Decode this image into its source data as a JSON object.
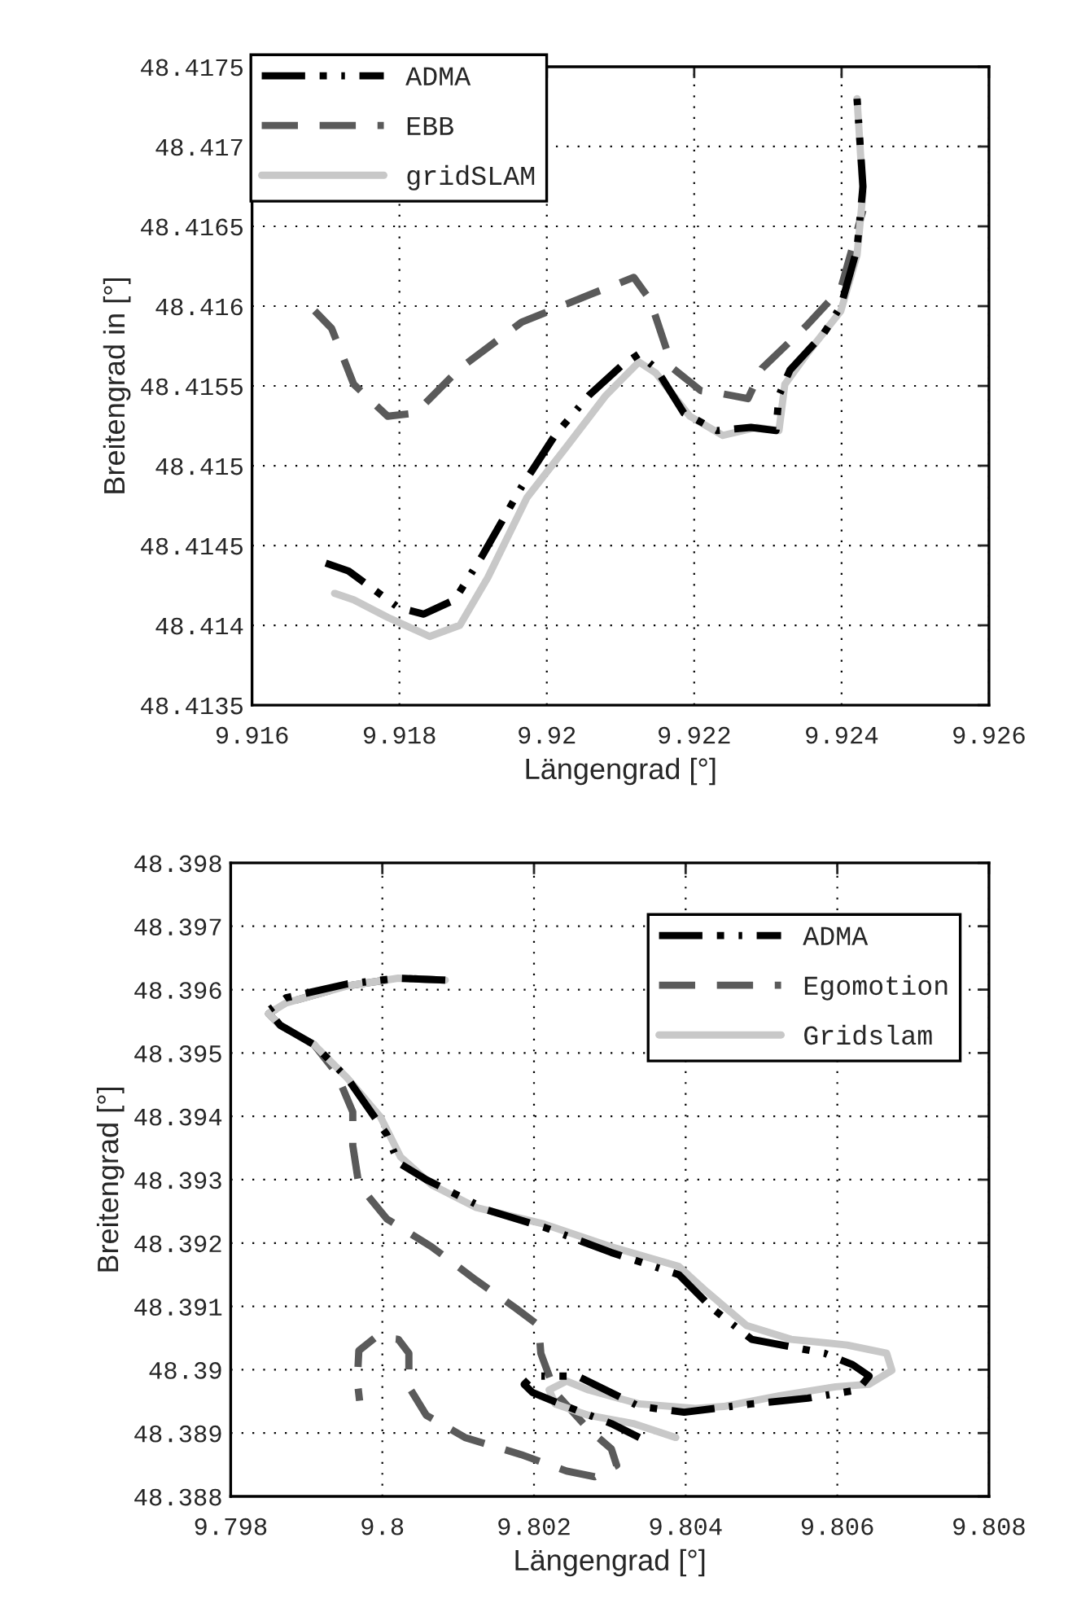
{
  "chart_data": [
    {
      "type": "line",
      "xlabel": "Längengrad [°]",
      "ylabel": "Breitengrad in [°]",
      "xlim": [
        9.916,
        9.926
      ],
      "ylim": [
        48.4135,
        48.4175
      ],
      "xticks": [
        9.916,
        9.918,
        9.92,
        9.922,
        9.924,
        9.926
      ],
      "yticks": [
        48.4135,
        48.414,
        48.4145,
        48.415,
        48.4155,
        48.416,
        48.4165,
        48.417,
        48.4175
      ],
      "grid": true,
      "legend": "top left",
      "marker": "none",
      "series": [
        {
          "name": "ADMA",
          "color": "#000000",
          "line_style": "dashdot",
          "x": [
            9.917,
            9.91731,
            9.91799,
            9.91833,
            9.91875,
            9.91913,
            9.91966,
            9.92011,
            9.92057,
            9.92102,
            9.92125,
            9.92148,
            9.92186,
            9.92231,
            9.92277,
            9.92311,
            9.92315,
            9.9233,
            9.92376,
            9.92399,
            9.92421,
            9.92429,
            9.92421
          ],
          "values": [
            48.41439,
            48.41434,
            48.41411,
            48.41407,
            48.41416,
            48.41444,
            48.41487,
            48.41519,
            48.41544,
            48.41563,
            48.4157,
            48.41561,
            48.41533,
            48.41522,
            48.41524,
            48.41522,
            48.41544,
            48.4156,
            48.41583,
            48.416,
            48.41636,
            48.41675,
            48.4173
          ]
        },
        {
          "name": "EBB",
          "color": "#5a5a5a",
          "line_style": "dashed",
          "x": [
            9.91685,
            9.91708,
            9.91738,
            9.91784,
            9.91822,
            9.91882,
            9.91966,
            9.92057,
            9.92118,
            9.9214,
            9.92171,
            9.92209,
            9.92239,
            9.92273,
            9.92292,
            9.92353,
            9.92399,
            9.92429
          ],
          "values": [
            48.41597,
            48.41586,
            48.41551,
            48.41531,
            48.41533,
            48.41561,
            48.4159,
            48.41607,
            48.41618,
            48.41604,
            48.41561,
            48.41547,
            48.41545,
            48.41542,
            48.41561,
            48.41588,
            48.41611,
            48.4166
          ]
        },
        {
          "name": "gridSLAM",
          "color": "#c8c8c8",
          "line_style": "solid",
          "x": [
            9.91712,
            9.91738,
            9.91784,
            9.91841,
            9.91882,
            9.9192,
            9.91973,
            9.92027,
            9.9208,
            9.92125,
            9.92148,
            9.92194,
            9.92239,
            9.92285,
            9.92315,
            9.92323,
            9.92353,
            9.92399,
            9.92421,
            9.92429,
            9.92421
          ],
          "values": [
            48.4142,
            48.41416,
            48.41405,
            48.41393,
            48.414,
            48.4143,
            48.4148,
            48.41512,
            48.41544,
            48.41565,
            48.41558,
            48.41531,
            48.41519,
            48.41524,
            48.41522,
            48.41551,
            48.4157,
            48.41597,
            48.41632,
            48.41671,
            48.4173
          ]
        }
      ]
    },
    {
      "type": "line",
      "xlabel": "Längengrad [°]",
      "ylabel": "Breitengrad [°]",
      "xlim": [
        9.798,
        9.808
      ],
      "ylim": [
        48.388,
        48.398
      ],
      "xticks": [
        9.798,
        9.8,
        9.802,
        9.804,
        9.806,
        9.808
      ],
      "yticks": [
        48.388,
        48.389,
        48.39,
        48.391,
        48.392,
        48.393,
        48.394,
        48.395,
        48.396,
        48.397,
        48.398
      ],
      "grid": true,
      "legend": "top right",
      "marker": "none",
      "series": [
        {
          "name": "ADMA",
          "color": "#000000",
          "line_style": "dashdot",
          "x": [
            9.80083,
            9.80021,
            9.79954,
            9.79873,
            9.7985,
            9.79865,
            9.7991,
            9.79954,
            9.80006,
            9.80021,
            9.80058,
            9.80139,
            9.80213,
            9.80302,
            9.80391,
            9.80435,
            9.80487,
            9.80583,
            9.8062,
            9.80642,
            9.80627,
            9.80561,
            9.80487,
            9.80398,
            9.80339,
            9.80257,
            9.80198,
            9.80187,
            9.80198,
            9.80243,
            9.80302,
            9.80339
          ],
          "values": [
            48.39615,
            48.39618,
            48.39609,
            48.39587,
            48.39567,
            48.39544,
            48.39513,
            48.3946,
            48.39371,
            48.39327,
            48.393,
            48.39252,
            48.39225,
            48.39185,
            48.3915,
            48.39097,
            48.39048,
            48.39026,
            48.39008,
            48.3899,
            48.38968,
            48.38955,
            48.38946,
            48.38933,
            48.38942,
            48.3899,
            48.3899,
            48.38977,
            48.38964,
            48.38942,
            48.38915,
            48.38893
          ]
        },
        {
          "name": "Egomotion",
          "color": "#5a5a5a",
          "line_style": "dashed",
          "x": [
            9.80083,
            9.80021,
            9.79954,
            9.79873,
            9.7985,
            9.79865,
            9.7991,
            9.79939,
            9.79961,
            9.79961,
            9.79969,
            9.80006,
            9.80065,
            9.80124,
            9.80176,
            9.80206,
            9.80209,
            9.80228,
            9.80272,
            9.80302,
            9.80309,
            9.8028,
            9.80243,
            9.80183,
            9.80109,
            9.80058,
            9.80035,
            9.80035,
            9.80021,
            9.79991,
            9.79969,
            9.79967,
            9.7997
          ],
          "values": [
            48.39615,
            48.39618,
            48.39606,
            48.39579,
            48.39562,
            48.39544,
            48.39513,
            48.39469,
            48.39407,
            48.39354,
            48.39292,
            48.39238,
            48.39194,
            48.39141,
            48.39097,
            48.3907,
            48.39026,
            48.38964,
            48.38906,
            48.38875,
            48.38849,
            48.38831,
            48.3884,
            48.38866,
            48.38893,
            48.38928,
            48.38973,
            48.39026,
            48.39048,
            48.39051,
            48.3903,
            48.38982,
            48.38951
          ]
        },
        {
          "name": "Gridslam",
          "color": "#c8c8c8",
          "line_style": "solid",
          "x": [
            9.80083,
            9.80021,
            9.79954,
            9.79873,
            9.7985,
            9.79865,
            9.7991,
            9.79954,
            9.79998,
            9.80024,
            9.80065,
            9.80124,
            9.80213,
            9.80302,
            9.80391,
            9.80428,
            9.8048,
            9.80539,
            9.80613,
            9.80665,
            9.80672,
            9.80642,
            9.80598,
            9.80524,
            9.8045,
            9.80413,
            9.80339,
            9.80272,
            9.80243,
            9.8022,
            9.80228,
            9.80272,
            9.80331,
            9.80387
          ],
          "values": [
            48.39615,
            48.39618,
            48.39606,
            48.39579,
            48.39562,
            48.39544,
            48.39513,
            48.3946,
            48.39398,
            48.39336,
            48.39292,
            48.39256,
            48.3923,
            48.39194,
            48.39163,
            48.39123,
            48.3907,
            48.39048,
            48.39039,
            48.39026,
            48.38999,
            48.38977,
            48.38973,
            48.38959,
            48.38942,
            48.38939,
            48.38946,
            48.38968,
            48.38982,
            48.38968,
            48.38946,
            48.38928,
            48.38915,
            48.38893
          ]
        }
      ]
    }
  ]
}
